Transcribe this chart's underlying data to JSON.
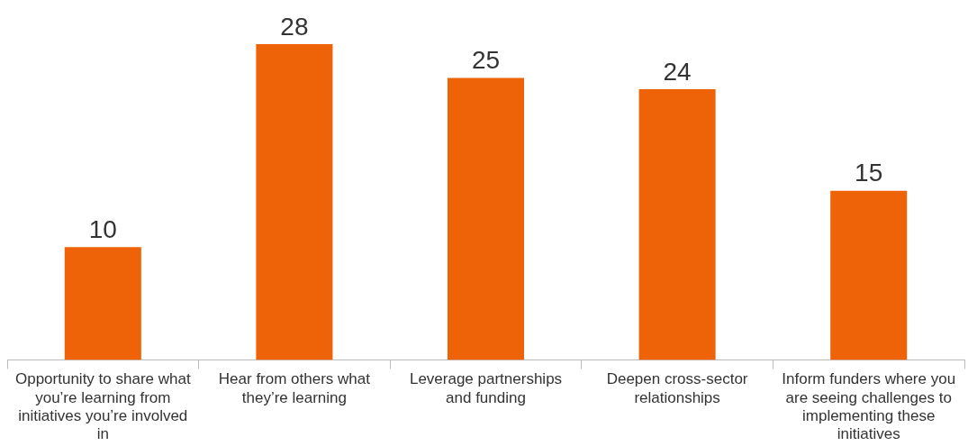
{
  "chart_data": {
    "type": "bar",
    "categories": [
      "Opportunity to share what you’re learning from initiatives you’re involved in",
      "Hear from others what they’re learning",
      "Leverage partnerships and funding",
      "Deepen cross-sector relationships",
      "Inform funders where you are seeing challenges to implementing these initiatives"
    ],
    "values": [
      10,
      28,
      25,
      24,
      15
    ],
    "color": "#ee6208",
    "data_labels": true,
    "grid": false,
    "legend": false
  }
}
